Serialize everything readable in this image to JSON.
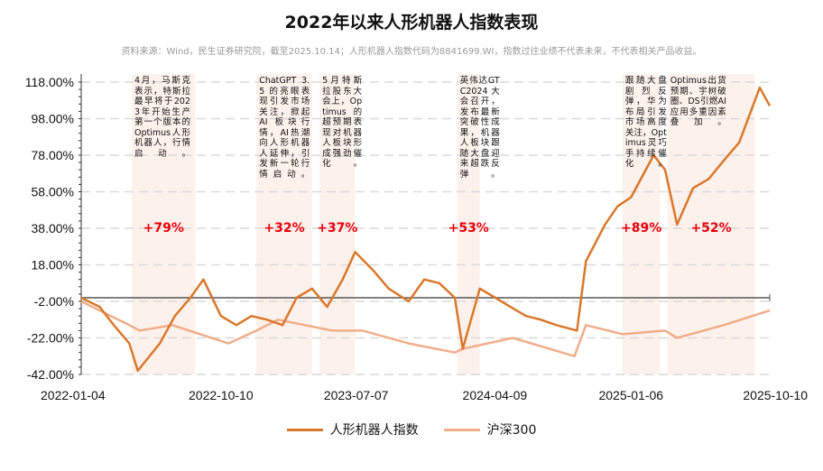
{
  "chart_data": {
    "type": "line",
    "title": "2022年以来人形机器人指数表现",
    "subtitle": "资料来源：Wind，民生证券研究院，截至2025.10.14；人形机器人指数代码为8841699.WI，指数过往业绩不代表未来，不代表相关产品收益。",
    "xlabel": "",
    "ylabel": "",
    "ylim": [
      -42,
      118
    ],
    "yticks": [
      "118.00%",
      "98.00%",
      "78.00%",
      "58.00%",
      "38.00%",
      "18.00%",
      "-2.00%",
      "-22.00%",
      "-42.00%"
    ],
    "xlim": [
      "2022-01-04",
      "2025-10-10"
    ],
    "xticks": [
      "2022-01-04",
      "2022-10-10",
      "2023-07-07",
      "2024-04-09",
      "2025-01-06",
      "2025-10-10"
    ],
    "grid": "horizontal dashed",
    "legend": "bottom",
    "series": [
      {
        "name": "人形机器人指数",
        "color": "#d9782b",
        "points": [
          [
            "2022-01-04",
            0
          ],
          [
            "2022-02-10",
            -5
          ],
          [
            "2022-03-10",
            -15
          ],
          [
            "2022-04-10",
            -25
          ],
          [
            "2022-04-27",
            -40
          ],
          [
            "2022-06-10",
            -25
          ],
          [
            "2022-07-10",
            -10
          ],
          [
            "2022-08-10",
            0
          ],
          [
            "2022-09-05",
            10
          ],
          [
            "2022-10-10",
            -10
          ],
          [
            "2022-11-10",
            -15
          ],
          [
            "2022-12-10",
            -10
          ],
          [
            "2023-01-10",
            -12
          ],
          [
            "2023-02-10",
            -15
          ],
          [
            "2023-03-10",
            0
          ],
          [
            "2023-04-10",
            5
          ],
          [
            "2023-05-10",
            -5
          ],
          [
            "2023-06-10",
            10
          ],
          [
            "2023-07-05",
            25
          ],
          [
            "2023-08-10",
            15
          ],
          [
            "2023-09-10",
            5
          ],
          [
            "2023-10-20",
            -2
          ],
          [
            "2023-11-20",
            10
          ],
          [
            "2023-12-20",
            8
          ],
          [
            "2024-01-20",
            0
          ],
          [
            "2024-02-05",
            -28
          ],
          [
            "2024-03-10",
            5
          ],
          [
            "2024-04-10",
            0
          ],
          [
            "2024-05-10",
            -5
          ],
          [
            "2024-06-10",
            -10
          ],
          [
            "2024-07-10",
            -12
          ],
          [
            "2024-08-10",
            -15
          ],
          [
            "2024-09-20",
            -18
          ],
          [
            "2024-10-08",
            20
          ],
          [
            "2024-11-15",
            40
          ],
          [
            "2024-12-10",
            50
          ],
          [
            "2025-01-06",
            55
          ],
          [
            "2025-02-20",
            78
          ],
          [
            "2025-03-15",
            70
          ],
          [
            "2025-04-08",
            40
          ],
          [
            "2025-05-10",
            60
          ],
          [
            "2025-06-10",
            65
          ],
          [
            "2025-07-10",
            75
          ],
          [
            "2025-08-10",
            85
          ],
          [
            "2025-09-20",
            115
          ],
          [
            "2025-10-10",
            105
          ]
        ]
      },
      {
        "name": "沪深300",
        "color": "#f0ad8a",
        "points": [
          [
            "2022-01-04",
            -2
          ],
          [
            "2022-04-10",
            -15
          ],
          [
            "2022-05-01",
            -18
          ],
          [
            "2022-07-05",
            -15
          ],
          [
            "2022-10-25",
            -25
          ],
          [
            "2022-12-20",
            -18
          ],
          [
            "2023-02-01",
            -12
          ],
          [
            "2023-05-20",
            -18
          ],
          [
            "2023-07-20",
            -18
          ],
          [
            "2023-10-20",
            -25
          ],
          [
            "2024-01-20",
            -30
          ],
          [
            "2024-02-05",
            -28
          ],
          [
            "2024-05-15",
            -22
          ],
          [
            "2024-09-15",
            -32
          ],
          [
            "2024-10-08",
            -15
          ],
          [
            "2024-12-20",
            -20
          ],
          [
            "2025-03-15",
            -18
          ],
          [
            "2025-04-08",
            -22
          ],
          [
            "2025-07-10",
            -15
          ],
          [
            "2025-10-10",
            -7
          ]
        ]
      }
    ],
    "shaded_periods": [
      {
        "start": "2022-04-15",
        "end": "2022-08-20",
        "change": "+79%",
        "note": "4月，马斯克表示，特斯拉最早将于2023年开始生产第一个版本的Optimus人形机器人，行情启动。"
      },
      {
        "start": "2022-12-20",
        "end": "2023-04-10",
        "change": "+32%",
        "note": "ChatGPT 3.5 的亮眼表现引发市场关注，掀起 AI 板块行情，AI热潮向人形机器人延伸，引发新一轮行情启动。"
      },
      {
        "start": "2023-04-25",
        "end": "2023-07-05",
        "change": "+37%",
        "note": "5月特斯拉股东大会上，Optimus的超预期表现对机器人板块形成强劲催化。"
      },
      {
        "start": "2024-01-25",
        "end": "2024-03-10",
        "change": "+53%",
        "note": "英伟达GTC2024大会召开，发布最新突破性成果，机器人板块跟随大盘迎来超跌反弹。"
      },
      {
        "start": "2024-12-20",
        "end": "2025-03-05",
        "change": "+89%",
        "note": "跟随大盘剧烈反弹，华为布局引发市场高度关注，Optimus灵巧手持续催化。"
      },
      {
        "start": "2025-03-20",
        "end": "2025-09-10",
        "change": "+52%",
        "note": "Optimus出货预期、宇树破圈、DS引燃AI应用多重因素叠加。"
      }
    ]
  }
}
